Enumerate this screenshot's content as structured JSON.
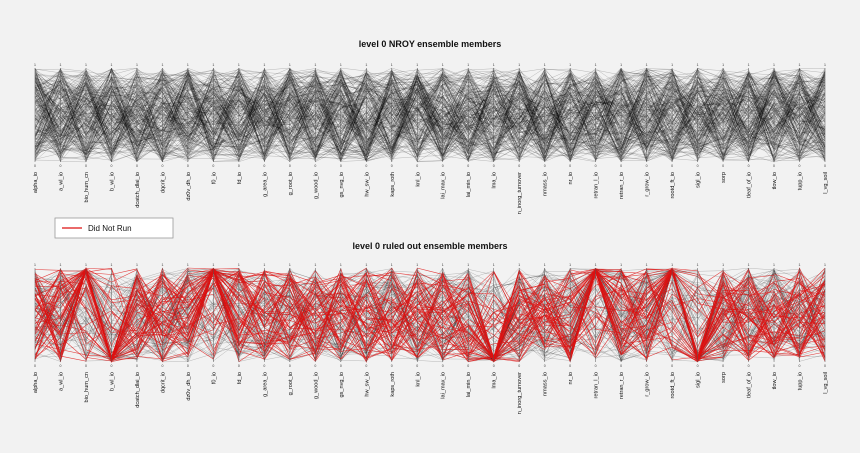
{
  "chart_data": [
    {
      "type": "parallel-coordinates",
      "title": "level 0 NROY ensemble members",
      "axes": [
        "alpha_io",
        "a_wl_io",
        "bio_hum_cn",
        "b_wl_io",
        "dcatch_dlai_io",
        "dqcrit_io",
        "dz0v_dh_io",
        "f0_io",
        "fd_io",
        "g_area_io",
        "g_root_io",
        "g_wood_io",
        "gs_nvg_io",
        "hw_sw_io",
        "kaps_roth",
        "knl_io",
        "lai_max_io",
        "lai_min_io",
        "lma_io",
        "n_inorg_turnover",
        "nmass_io",
        "nr_io",
        "retran_l_io",
        "retran_r_io",
        "r_grow_io",
        "rootd_ft_io",
        "sigl_io",
        "sorp",
        "tleaf_of_io",
        "tlow_io",
        "tupp_io",
        "l_vg_soil"
      ],
      "range": [
        0,
        1
      ],
      "tick_labels": {
        "top": "1",
        "bottom": "0"
      },
      "series": [
        {
          "values_description_only": "",
          "color": "#000000"
        }
      ]
    },
    {
      "type": "parallel-coordinates",
      "title": "level 0 ruled out ensemble members",
      "axes": [
        "alpha_io",
        "a_wl_io",
        "bio_hum_cn",
        "b_wl_io",
        "dcatch_dlai_io",
        "dqcrit_io",
        "dz0v_dh_io",
        "f0_io",
        "fd_io",
        "g_area_io",
        "g_root_io",
        "g_wood_io",
        "gs_nvg_io",
        "hw_sw_io",
        "kaps_roth",
        "knl_io",
        "lai_max_io",
        "lai_min_io",
        "lma_io",
        "n_inorg_turnover",
        "nmass_io",
        "nr_io",
        "retran_l_io",
        "retran_r_io",
        "r_grow_io",
        "rootd_ft_io",
        "sigl_io",
        "sorp",
        "tleaf_of_io",
        "tlow_io",
        "tupp_io",
        "l_vg_soil"
      ],
      "range": [
        0,
        1
      ],
      "tick_labels": {
        "top": "1",
        "bottom": "0"
      },
      "series": [
        {
          "color": "#000000"
        },
        {
          "name": "Did Not Run",
          "color": "#dd1111"
        }
      ]
    }
  ],
  "legend": {
    "label": "Did Not Run",
    "color": "#dd1111",
    "placement": "between-panels-left"
  }
}
